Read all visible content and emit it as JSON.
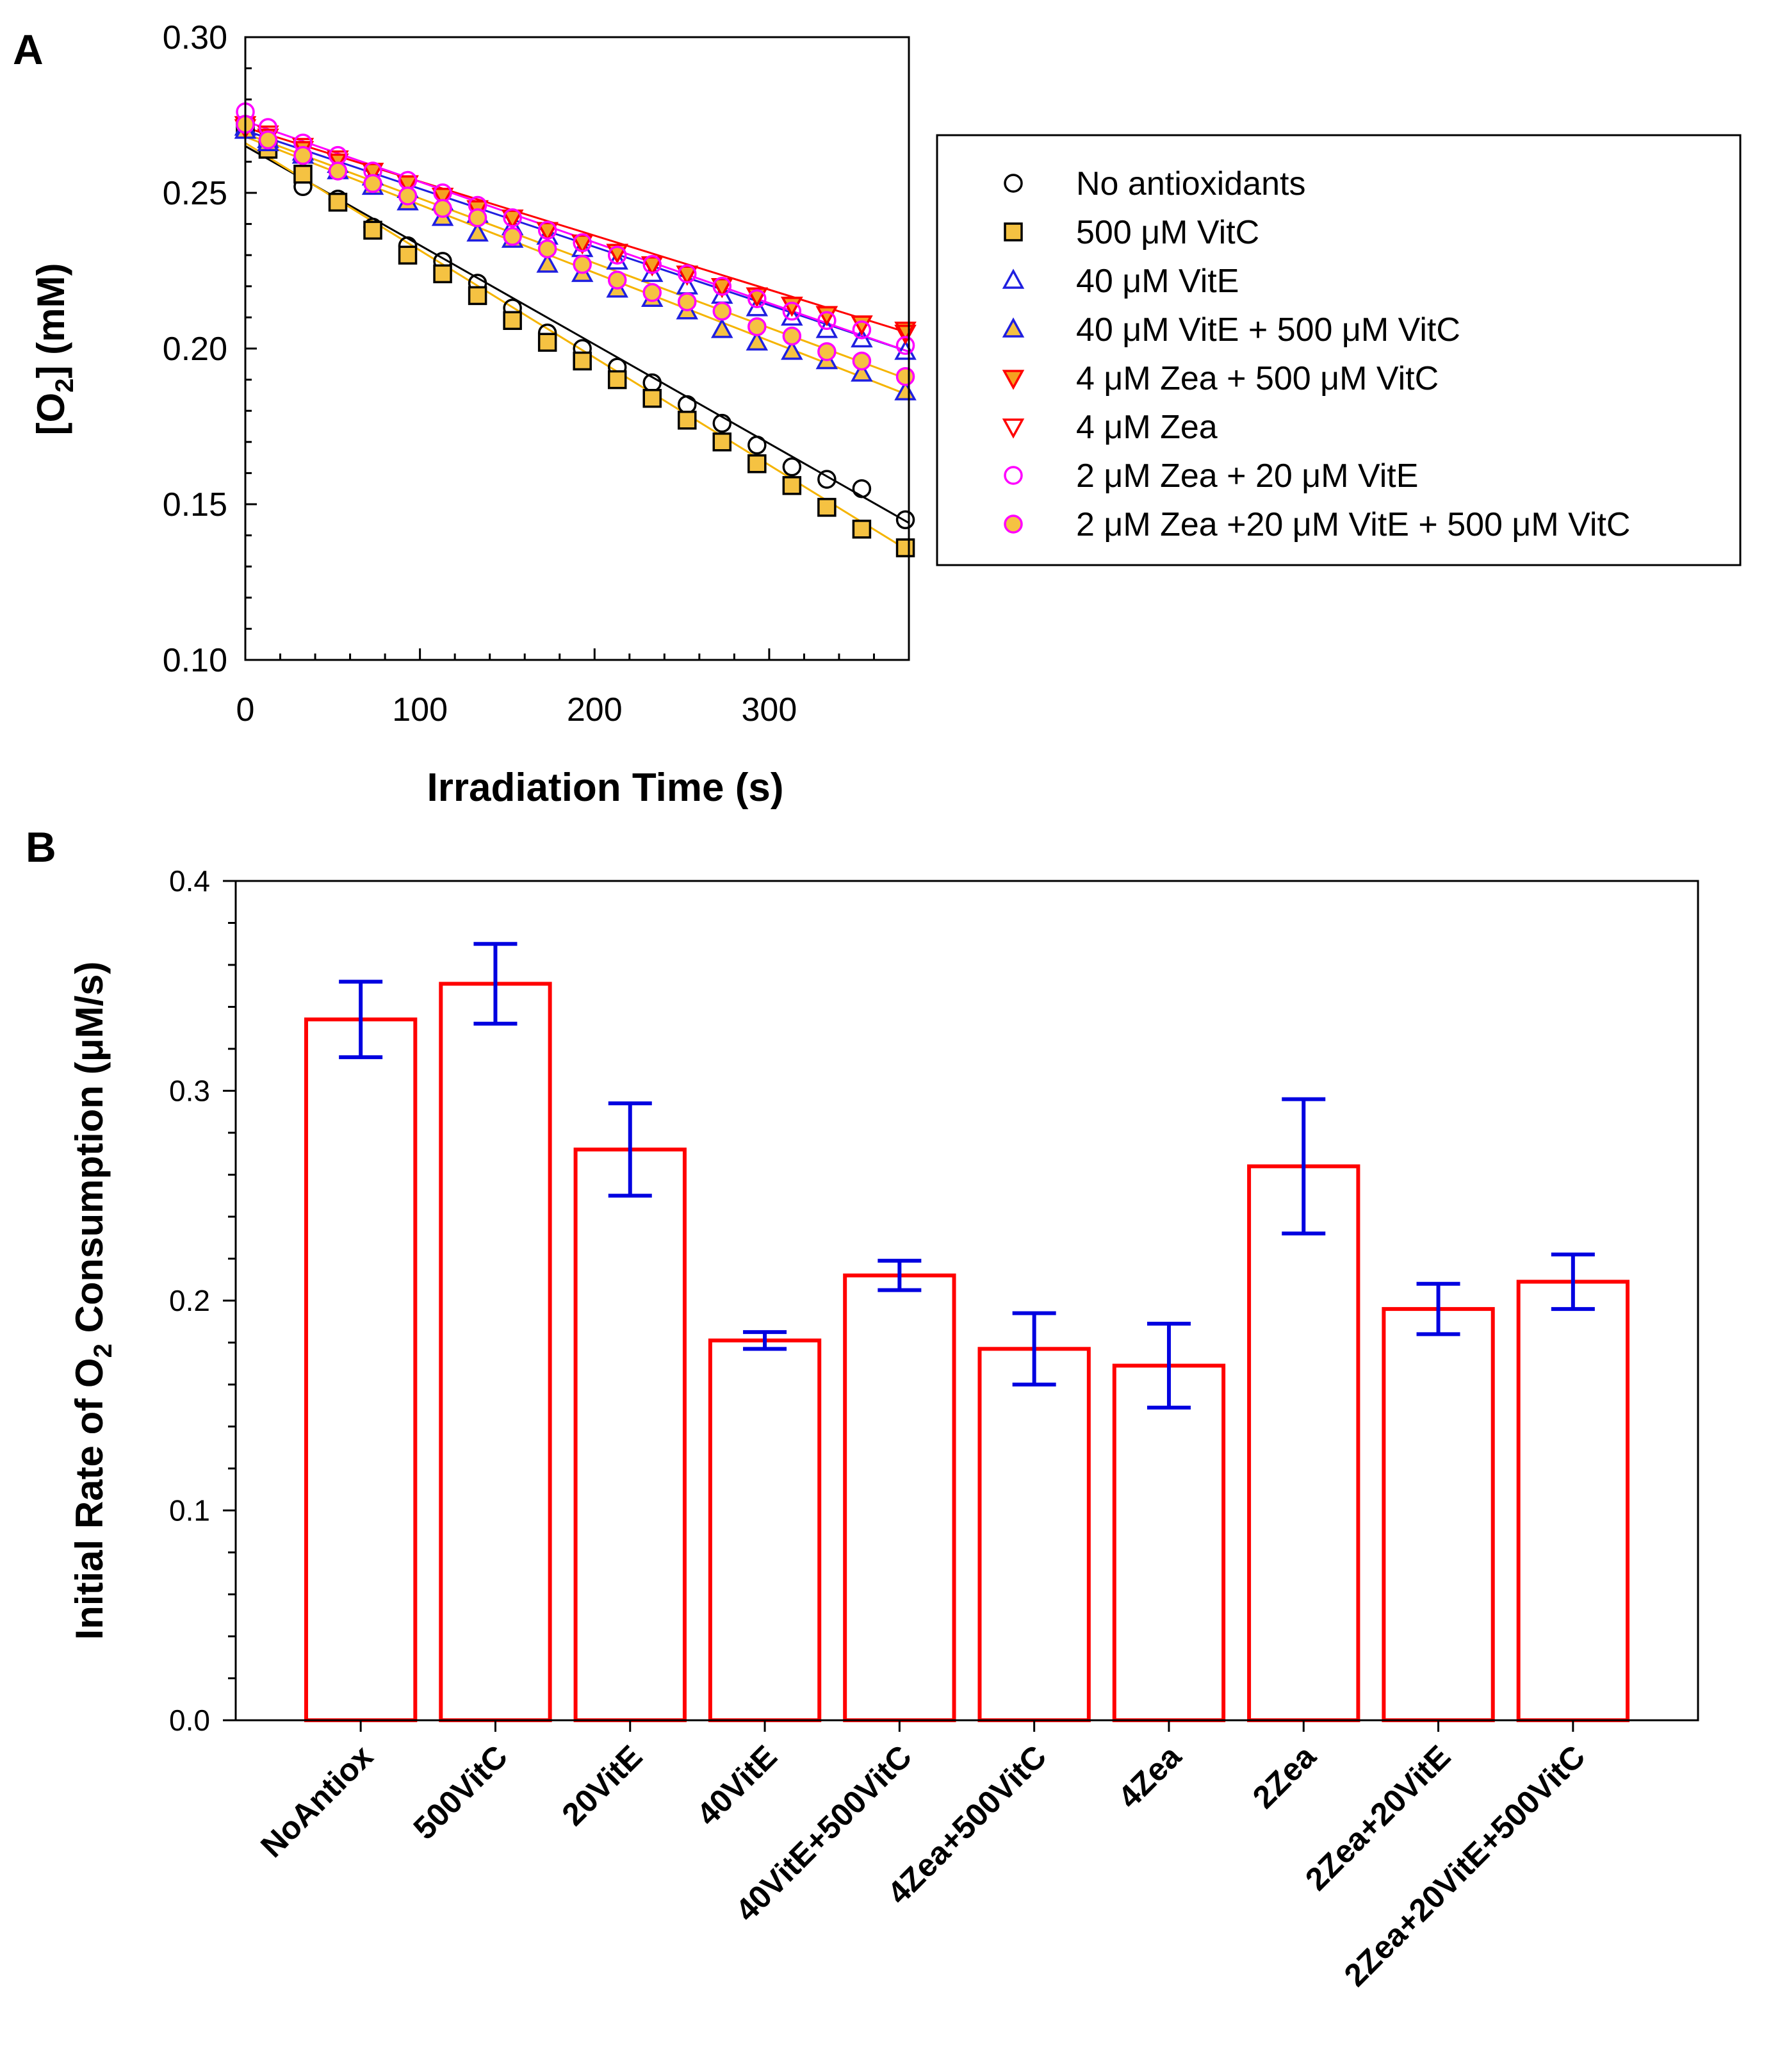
{
  "chart_data": [
    {
      "panel_label": "A",
      "type": "scatter",
      "xlabel": "Irradiation Time (s)",
      "ylabel": {
        "pre": "[O",
        "sub": "2",
        "post": "] (mM)"
      },
      "xlim": [
        0,
        380
      ],
      "ylim": [
        0.1,
        0.3
      ],
      "xticks": [
        0,
        100,
        200,
        300
      ],
      "xtick_labels": [
        "0",
        "100",
        "200",
        "300"
      ],
      "yticks": [
        0.1,
        0.15,
        0.2,
        0.25,
        0.3
      ],
      "ytick_labels": [
        "0.10",
        "0.15",
        "0.20",
        "0.25",
        "0.30"
      ],
      "legend_position": "right",
      "x": [
        0,
        13,
        33,
        53,
        73,
        93,
        113,
        133,
        153,
        173,
        193,
        213,
        233,
        253,
        273,
        293,
        313,
        333,
        353,
        378
      ],
      "series": [
        {
          "name": "No antioxidants",
          "marker": "circle",
          "fill": "none",
          "stroke": "#000000",
          "line": "#000000",
          "values": [
            0.272,
            0.266,
            0.252,
            0.248,
            0.239,
            0.233,
            0.228,
            0.221,
            0.213,
            0.205,
            0.2,
            0.194,
            0.189,
            0.182,
            0.176,
            0.169,
            0.162,
            0.158,
            0.155,
            0.145
          ]
        },
        {
          "name": "500 μM VitC",
          "marker": "square",
          "fill": "#f5c242",
          "stroke": "#000000",
          "line": "#f5b400",
          "values": [
            0.271,
            0.264,
            0.256,
            0.247,
            0.238,
            0.23,
            0.224,
            0.217,
            0.209,
            0.202,
            0.196,
            0.19,
            0.184,
            0.177,
            0.17,
            0.163,
            0.156,
            0.149,
            0.142,
            0.136
          ]
        },
        {
          "name": "40 μM VitE",
          "marker": "triangle-up",
          "fill": "none",
          "stroke": "#1f1fe0",
          "line": "#1f1fe0",
          "values": [
            0.271,
            0.267,
            0.263,
            0.259,
            0.255,
            0.251,
            0.247,
            0.243,
            0.239,
            0.236,
            0.232,
            0.228,
            0.224,
            0.22,
            0.217,
            0.213,
            0.21,
            0.206,
            0.203,
            0.199
          ]
        },
        {
          "name": "40 μM VitE + 500 μM VitC",
          "marker": "triangle-up",
          "fill": "#f5c242",
          "stroke": "#1f1fe0",
          "line": "#f5b400",
          "values": [
            0.27,
            0.266,
            0.262,
            0.257,
            0.252,
            0.247,
            0.242,
            0.237,
            0.235,
            0.227,
            0.224,
            0.219,
            0.216,
            0.212,
            0.206,
            0.202,
            0.199,
            0.196,
            0.192,
            0.186
          ]
        },
        {
          "name": "4 μM Zea + 500 μM VitC",
          "marker": "triangle-down",
          "fill": "#f5a020",
          "stroke": "#ff0000",
          "line": "#ff0000",
          "values": [
            0.271,
            0.268,
            0.264,
            0.26,
            0.257,
            0.253,
            0.249,
            0.245,
            0.242,
            0.238,
            0.234,
            0.231,
            0.227,
            0.224,
            0.22,
            0.217,
            0.214,
            0.211,
            0.208,
            0.206
          ]
        },
        {
          "name": "4 μM Zea",
          "marker": "triangle-down",
          "fill": "none",
          "stroke": "#ff0000",
          "line": "#ff0000",
          "values": [
            0.272,
            0.269,
            0.265,
            0.261,
            0.257,
            0.253,
            0.249,
            0.245,
            0.242,
            0.238,
            0.234,
            0.231,
            0.227,
            0.224,
            0.22,
            0.217,
            0.214,
            0.211,
            0.208,
            0.205
          ]
        },
        {
          "name": "2 μM Zea + 20 μM VitE",
          "marker": "circle",
          "fill": "none",
          "stroke": "#ff00ff",
          "line": "#ff00ff",
          "values": [
            0.276,
            0.271,
            0.266,
            0.262,
            0.257,
            0.254,
            0.25,
            0.246,
            0.242,
            0.238,
            0.234,
            0.23,
            0.227,
            0.224,
            0.22,
            0.216,
            0.212,
            0.209,
            0.206,
            0.201
          ]
        },
        {
          "name": "2 μM Zea +20 μM VitE + 500 μM VitC",
          "marker": "circle",
          "fill": "#f5c242",
          "stroke": "#ff00ff",
          "line": "#f5b400",
          "values": [
            0.272,
            0.267,
            0.262,
            0.257,
            0.253,
            0.249,
            0.245,
            0.242,
            0.236,
            0.232,
            0.227,
            0.222,
            0.218,
            0.215,
            0.212,
            0.207,
            0.204,
            0.199,
            0.196,
            0.191
          ]
        }
      ],
      "fits": [
        {
          "series": "No antioxidants",
          "y0": 0.265,
          "y1": 0.144,
          "color": "#000000"
        },
        {
          "series": "500 μM VitC",
          "y0": 0.266,
          "y1": 0.135,
          "color": "#f5b400"
        },
        {
          "series": "40 μM VitE",
          "y0": 0.27,
          "y1": 0.199,
          "color": "#1f1fe0"
        },
        {
          "series": "40 μM VitE + 500 μM VitC",
          "y0": 0.268,
          "y1": 0.185,
          "color": "#f5b400"
        },
        {
          "series": "4 μM Zea",
          "y0": 0.271,
          "y1": 0.205,
          "color": "#ff0000"
        },
        {
          "series": "2 μM Zea + 20 μM VitE",
          "y0": 0.273,
          "y1": 0.199,
          "color": "#ff00ff"
        },
        {
          "series": "2 μM Zea +20 μM VitE + 500 μM VitC",
          "y0": 0.269,
          "y1": 0.19,
          "color": "#f5b400"
        }
      ]
    },
    {
      "panel_label": "B",
      "type": "bar",
      "ylabel": {
        "pre": "Initial Rate of O",
        "sub": "2",
        "post": " Consumption (μM/s)"
      },
      "xlabel": "",
      "ylim": [
        0.0,
        0.4
      ],
      "yticks": [
        0.0,
        0.1,
        0.2,
        0.3,
        0.4
      ],
      "ytick_labels": [
        "0.0",
        "0.1",
        "0.2",
        "0.3",
        "0.4"
      ],
      "bar_color": "#ff0000",
      "error_color": "#0000e0",
      "categories": [
        "NoAntiox",
        "500VitC",
        "20VitE",
        "40VitE",
        "40VitE+500VitC",
        "4Zea+500VitC",
        "4Zea",
        "2Zea",
        "2Zea+20VitE",
        "2Zea+20VitE+500VitC"
      ],
      "values": [
        0.334,
        0.351,
        0.272,
        0.181,
        0.212,
        0.177,
        0.169,
        0.264,
        0.196,
        0.209
      ],
      "errors": [
        0.018,
        0.019,
        0.022,
        0.004,
        0.007,
        0.017,
        0.02,
        0.032,
        0.012,
        0.013
      ]
    }
  ]
}
